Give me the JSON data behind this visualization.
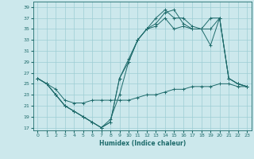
{
  "xlabel": "Humidex (Indice chaleur)",
  "bg_color": "#cce8ec",
  "grid_color": "#9ecdd4",
  "line_color": "#1e6b6b",
  "xlim": [
    -0.5,
    23.5
  ],
  "ylim": [
    16.5,
    40
  ],
  "xticks": [
    0,
    1,
    2,
    3,
    4,
    5,
    6,
    7,
    8,
    9,
    10,
    11,
    12,
    13,
    14,
    15,
    16,
    17,
    18,
    19,
    20,
    21,
    22,
    23
  ],
  "yticks": [
    17,
    19,
    21,
    23,
    25,
    27,
    29,
    31,
    33,
    35,
    37,
    39
  ],
  "line1_x": [
    0,
    1,
    2,
    3,
    4,
    5,
    6,
    7,
    8,
    9,
    10,
    11,
    12,
    13,
    14,
    15,
    16,
    17,
    18,
    19,
    20,
    21,
    22,
    23
  ],
  "line1_y": [
    26,
    25,
    23,
    21,
    20,
    19,
    18,
    17,
    18,
    26,
    29.5,
    33,
    35,
    37,
    38.5,
    37,
    37,
    35.5,
    35,
    32,
    37,
    26,
    25,
    24.5
  ],
  "line2_x": [
    0,
    1,
    2,
    3,
    4,
    5,
    6,
    7,
    8,
    9,
    10,
    11,
    12,
    13,
    14,
    15,
    16,
    17,
    18,
    19,
    20,
    21,
    22,
    23
  ],
  "line2_y": [
    26,
    25,
    23,
    21,
    20,
    19,
    18,
    17,
    18,
    26,
    29,
    33,
    35,
    36,
    38,
    38.5,
    36,
    35,
    35,
    35,
    37,
    26,
    25,
    24.5
  ],
  "line3_x": [
    0,
    1,
    2,
    3,
    4,
    5,
    6,
    7,
    8,
    9,
    10,
    11,
    12,
    13,
    14,
    15,
    16,
    17,
    18,
    19,
    20,
    21,
    22,
    23
  ],
  "line3_y": [
    26,
    25,
    23,
    21,
    20,
    19,
    18,
    17,
    18.5,
    23,
    29,
    33,
    35,
    35.5,
    37,
    35,
    35.5,
    35,
    35,
    37,
    37,
    26,
    25,
    24.5
  ],
  "line4_x": [
    0,
    1,
    2,
    3,
    4,
    5,
    6,
    7,
    8,
    9,
    10,
    11,
    12,
    13,
    14,
    15,
    16,
    17,
    18,
    19,
    20,
    21,
    22,
    23
  ],
  "line4_y": [
    26,
    25,
    24,
    22,
    21.5,
    21.5,
    22,
    22,
    22,
    22,
    22,
    22.5,
    23,
    23,
    23.5,
    24,
    24,
    24.5,
    24.5,
    24.5,
    25,
    25,
    24.5,
    24.5
  ]
}
